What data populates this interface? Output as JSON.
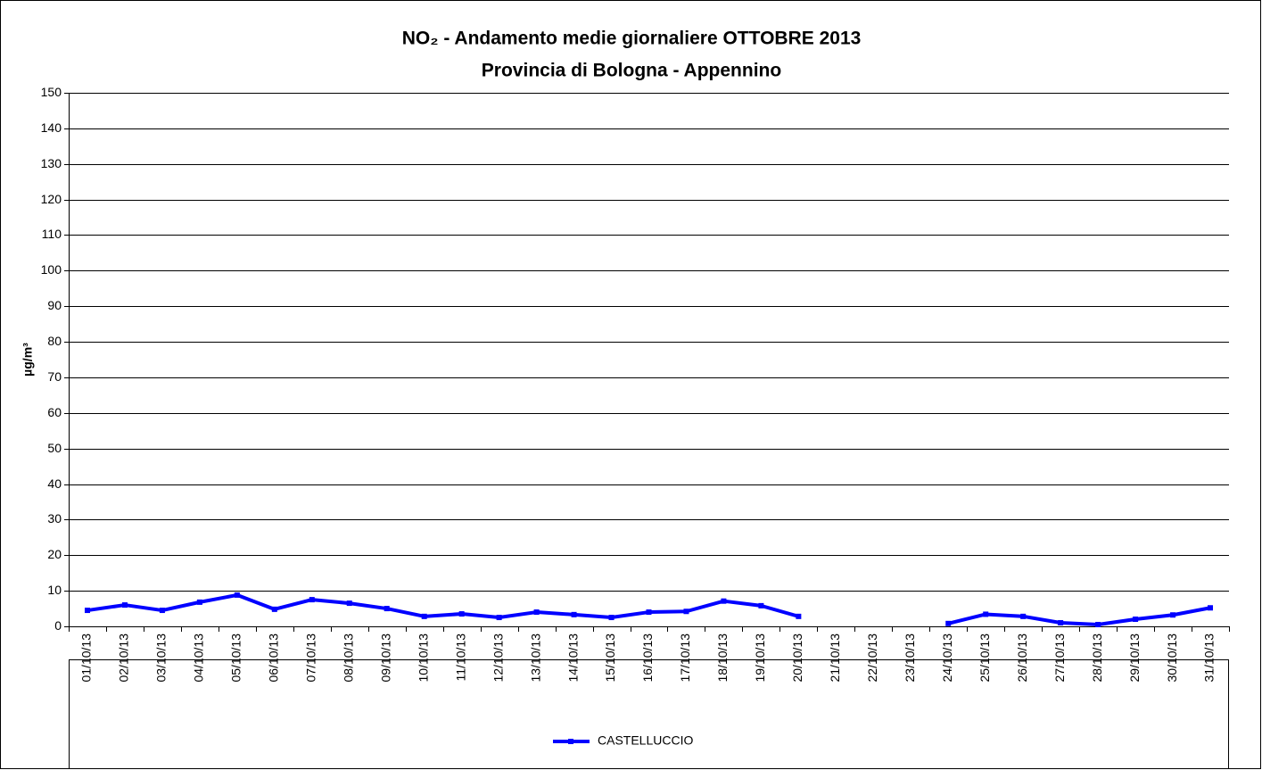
{
  "chart_data": {
    "type": "line",
    "title": [
      "NO₂ - Andamento medie giornaliere OTTOBRE 2013",
      "Provincia di Bologna - Appennino"
    ],
    "y_label": "µg/m³",
    "categories": [
      "01/10/13",
      "02/10/13",
      "03/10/13",
      "04/10/13",
      "05/10/13",
      "06/10/13",
      "07/10/13",
      "08/10/13",
      "09/10/13",
      "10/10/13",
      "11/10/13",
      "12/10/13",
      "13/10/13",
      "14/10/13",
      "15/10/13",
      "16/10/13",
      "17/10/13",
      "18/10/13",
      "19/10/13",
      "20/10/13",
      "21/10/13",
      "22/10/13",
      "23/10/13",
      "24/10/13",
      "25/10/13",
      "26/10/13",
      "27/10/13",
      "28/10/13",
      "29/10/13",
      "30/10/13",
      "31/10/13"
    ],
    "series": [
      {
        "name": "CASTELLUCCIO",
        "color": "#0000ff",
        "values": [
          4.5,
          6,
          4.5,
          6.8,
          8.8,
          4.8,
          7.5,
          6.5,
          5,
          2.8,
          3.5,
          2.5,
          4,
          3.3,
          2.5,
          4,
          4.2,
          7.1,
          5.8,
          2.8,
          null,
          null,
          null,
          0.8,
          3.4,
          2.8,
          1,
          0.5,
          2,
          3.2,
          5.2
        ]
      }
    ],
    "ylim": [
      0,
      150
    ],
    "yticks": [
      0,
      10,
      20,
      30,
      40,
      50,
      60,
      70,
      80,
      90,
      100,
      110,
      120,
      130,
      140,
      150
    ],
    "grid": true,
    "legend": "bottom"
  }
}
